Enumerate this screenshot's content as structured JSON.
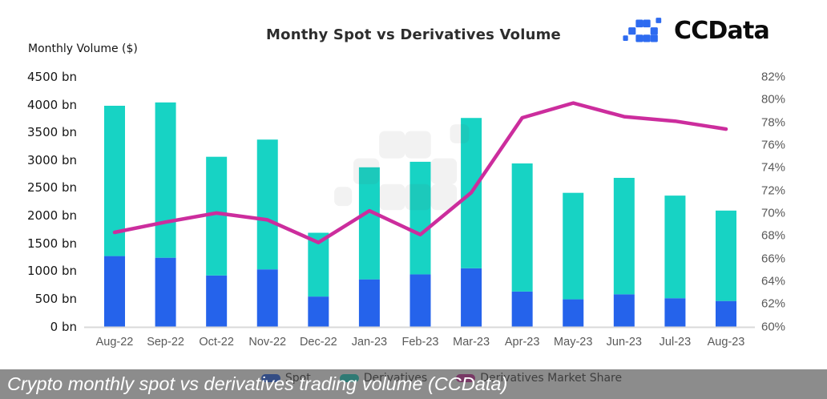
{
  "header": {
    "title": "Monthy Spot vs Derivatives Volume",
    "brand_text": "CCData"
  },
  "axes": {
    "left_title": "Monthly Volume ($)",
    "left_ticks": [
      "4500 bn",
      "4000 bn",
      "3500 bn",
      "3000 bn",
      "2500 bn",
      "2000 bn",
      "1500 bn",
      "1000 bn",
      "500 bn",
      "0 bn"
    ],
    "right_ticks": [
      "82%",
      "80%",
      "78%",
      "76%",
      "74%",
      "72%",
      "70%",
      "68%",
      "66%",
      "64%",
      "62%",
      "60%"
    ]
  },
  "legend": {
    "items": [
      {
        "label": "Spot",
        "color": "#2563eb"
      },
      {
        "label": "Derivatives",
        "color": "#17d3c4"
      },
      {
        "label": "Derivatives Market Share",
        "color": "#cc2d9d"
      }
    ]
  },
  "caption": {
    "text": "Crypto monthly spot vs derivatives trading volume (CCData)"
  },
  "icons": {
    "brand_mark": "ccdata-pixel-logo",
    "watermark": "ccdata-pixel-logo-watermark"
  },
  "colors": {
    "spot": "#2563eb",
    "derivatives": "#17d3c4",
    "share_line": "#cc2d9d",
    "axis_text_gray": "#595959",
    "axis_text_dark": "#161616",
    "baseline": "#d9d9d9",
    "brand_blue": "#2e6bf0",
    "caption_bg": "rgba(64,64,64,0.6)",
    "caption_text": "#ffffff"
  },
  "chart_data": {
    "type": "bar",
    "subtype": "stacked-column-with-line",
    "title": "Monthy Spot vs Derivatives Volume",
    "categories": [
      "Aug-22",
      "Sep-22",
      "Oct-22",
      "Nov-22",
      "Dec-22",
      "Jan-23",
      "Feb-23",
      "Mar-23",
      "Apr-23",
      "May-23",
      "Jun-23",
      "Jul-23",
      "Aug-23"
    ],
    "series": [
      {
        "name": "Spot",
        "type": "bar",
        "stack": "volume",
        "unit": "bn USD",
        "color": "#2563eb",
        "values": [
          1270,
          1240,
          920,
          1030,
          540,
          850,
          940,
          1050,
          630,
          490,
          580,
          510,
          460
        ]
      },
      {
        "name": "Derivatives",
        "type": "bar",
        "stack": "volume",
        "unit": "bn USD",
        "color": "#17d3c4",
        "values": [
          2710,
          2800,
          2140,
          2340,
          1150,
          2020,
          2030,
          2710,
          2310,
          1920,
          2100,
          1850,
          1630
        ]
      },
      {
        "name": "Derivatives Market Share",
        "type": "line",
        "axis": "right",
        "unit": "%",
        "color": "#cc2d9d",
        "values": [
          68.3,
          69.2,
          70.0,
          69.4,
          67.4,
          70.2,
          68.1,
          71.8,
          78.4,
          79.7,
          78.5,
          78.1,
          77.4
        ]
      }
    ],
    "left_axis": {
      "title": "Monthly Volume ($)",
      "min": 0,
      "max": 4500,
      "step": 500,
      "unit": "bn"
    },
    "right_axis": {
      "min": 60,
      "max": 82,
      "step": 2,
      "unit": "%"
    },
    "legend_position": "bottom",
    "grid": false
  }
}
